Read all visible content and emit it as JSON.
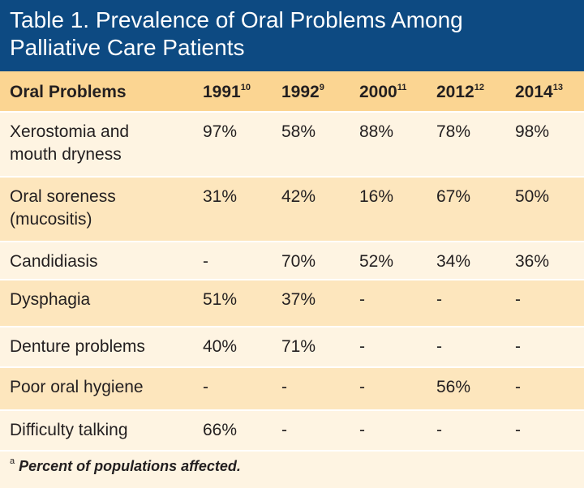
{
  "title": "Table 1. Prevalence of Oral Problems Among Palliative Care Patients",
  "table": {
    "header": [
      {
        "text": "Oral Problems"
      },
      {
        "text": "1991",
        "ref": "10"
      },
      {
        "text": "1992",
        "ref": "9"
      },
      {
        "text": "2000",
        "ref": "11"
      },
      {
        "text": "2012",
        "ref": "12"
      },
      {
        "text": "2014",
        "ref": "13"
      }
    ],
    "rows": [
      [
        "Xerostomia and mouth dryness",
        "97%",
        "58%",
        "88%",
        "78%",
        "98%"
      ],
      [
        "Oral soreness (mucositis)",
        "31%",
        "42%",
        "16%",
        "67%",
        "50%"
      ],
      [
        "Candidiasis",
        "-",
        "70%",
        "52%",
        "34%",
        "36%"
      ],
      [
        "Dysphagia",
        "51%",
        "37%",
        "-",
        "-",
        "-"
      ],
      [
        "Denture problems",
        "40%",
        "71%",
        "-",
        "-",
        "-"
      ],
      [
        "Poor oral hygiene",
        "-",
        "-",
        "-",
        "56%",
        "-"
      ],
      [
        "Difficulty talking",
        "66%",
        "-",
        "-",
        "-",
        "-"
      ]
    ]
  },
  "footnote": {
    "marker": "a",
    "text": "Percent of populations affected."
  }
}
